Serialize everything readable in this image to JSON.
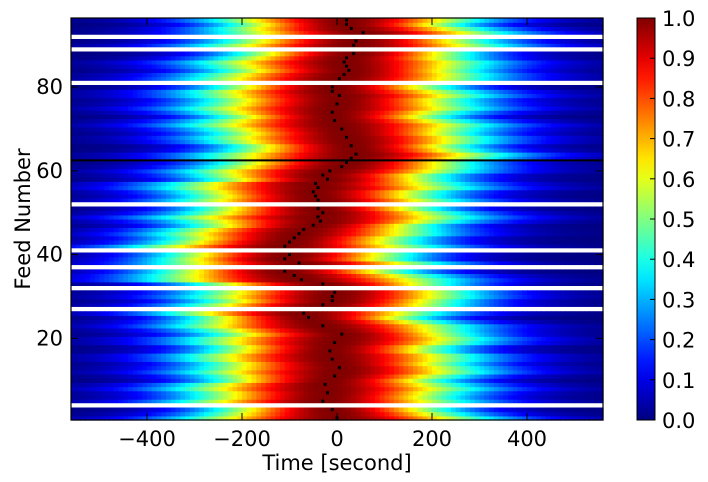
{
  "chart_data": {
    "type": "heatmap",
    "colormap": "jet",
    "xlabel": "Time [second]",
    "ylabel": "Feed Number",
    "xlim": [
      -560,
      560
    ],
    "ylim": [
      1,
      96
    ],
    "x_ticks": [
      {
        "value": -400,
        "label": "−400"
      },
      {
        "value": -200,
        "label": "−200"
      },
      {
        "value": 0,
        "label": "0"
      },
      {
        "value": 200,
        "label": "200"
      },
      {
        "value": 400,
        "label": "400"
      }
    ],
    "y_ticks": [
      {
        "value": 20,
        "label": "20"
      },
      {
        "value": 40,
        "label": "40"
      },
      {
        "value": 60,
        "label": "60"
      },
      {
        "value": 80,
        "label": "80"
      }
    ],
    "colorbar": {
      "range": [
        0.0,
        1.0
      ],
      "ticks": [
        "0.0",
        "0.1",
        "0.2",
        "0.3",
        "0.4",
        "0.5",
        "0.6",
        "0.7",
        "0.8",
        "0.9",
        "1.0"
      ]
    },
    "empty_feeds": [
      4,
      27,
      32,
      37,
      41,
      52,
      81,
      89,
      92
    ],
    "feed_peak_times": [
      {
        "feed": 1,
        "t": 0
      },
      {
        "feed": 3,
        "t": -10
      },
      {
        "feed": 5,
        "t": -30
      },
      {
        "feed": 7,
        "t": -20
      },
      {
        "feed": 9,
        "t": -25
      },
      {
        "feed": 11,
        "t": -5
      },
      {
        "feed": 13,
        "t": 5
      },
      {
        "feed": 15,
        "t": -10
      },
      {
        "feed": 17,
        "t": -15
      },
      {
        "feed": 19,
        "t": -5
      },
      {
        "feed": 21,
        "t": 10
      },
      {
        "feed": 23,
        "t": -30
      },
      {
        "feed": 25,
        "t": -60
      },
      {
        "feed": 26,
        "t": -70
      },
      {
        "feed": 28,
        "t": -30
      },
      {
        "feed": 29,
        "t": -10
      },
      {
        "feed": 30,
        "t": -10
      },
      {
        "feed": 31,
        "t": -5
      },
      {
        "feed": 33,
        "t": -30
      },
      {
        "feed": 34,
        "t": -75
      },
      {
        "feed": 35,
        "t": -90
      },
      {
        "feed": 36,
        "t": -110
      },
      {
        "feed": 38,
        "t": -80
      },
      {
        "feed": 39,
        "t": -110
      },
      {
        "feed": 40,
        "t": -100
      },
      {
        "feed": 42,
        "t": -110
      },
      {
        "feed": 43,
        "t": -100
      },
      {
        "feed": 44,
        "t": -90
      },
      {
        "feed": 45,
        "t": -80
      },
      {
        "feed": 46,
        "t": -70
      },
      {
        "feed": 47,
        "t": -50
      },
      {
        "feed": 48,
        "t": -35
      },
      {
        "feed": 49,
        "t": -40
      },
      {
        "feed": 50,
        "t": -30
      },
      {
        "feed": 51,
        "t": -40
      },
      {
        "feed": 53,
        "t": -40
      },
      {
        "feed": 54,
        "t": -45
      },
      {
        "feed": 55,
        "t": -50
      },
      {
        "feed": 56,
        "t": -40
      },
      {
        "feed": 57,
        "t": -45
      },
      {
        "feed": 58,
        "t": -20
      },
      {
        "feed": 59,
        "t": -30
      },
      {
        "feed": 60,
        "t": -15
      },
      {
        "feed": 61,
        "t": 10
      },
      {
        "feed": 62,
        "t": 20
      },
      {
        "feed": 63,
        "t": 30
      },
      {
        "feed": 64,
        "t": 40
      },
      {
        "feed": 66,
        "t": 30
      },
      {
        "feed": 68,
        "t": 20
      },
      {
        "feed": 70,
        "t": 10
      },
      {
        "feed": 72,
        "t": -5
      },
      {
        "feed": 74,
        "t": -10
      },
      {
        "feed": 76,
        "t": 0
      },
      {
        "feed": 78,
        "t": 5
      },
      {
        "feed": 79,
        "t": -10
      },
      {
        "feed": 80,
        "t": -10
      },
      {
        "feed": 82,
        "t": 5
      },
      {
        "feed": 83,
        "t": 15
      },
      {
        "feed": 84,
        "t": 25
      },
      {
        "feed": 85,
        "t": 20
      },
      {
        "feed": 86,
        "t": 15
      },
      {
        "feed": 87,
        "t": 20
      },
      {
        "feed": 88,
        "t": 35
      },
      {
        "feed": 90,
        "t": 35
      },
      {
        "feed": 91,
        "t": 40
      },
      {
        "feed": 93,
        "t": 55
      },
      {
        "feed": 94,
        "t": 30
      },
      {
        "feed": 95,
        "t": 20
      },
      {
        "feed": 96,
        "t": 20
      }
    ],
    "highlight_line": {
      "feed": 62.5,
      "color": "#000000"
    }
  }
}
